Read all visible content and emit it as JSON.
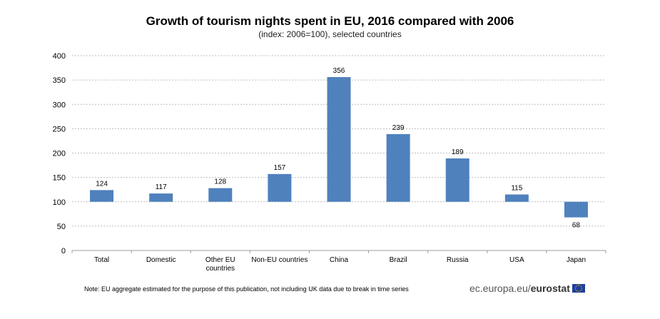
{
  "chart_data": {
    "type": "bar",
    "title": "Growth of tourism nights spent in EU, 2016 compared with 2006",
    "subtitle": "(index: 2006=100), selected countries",
    "categories": [
      "Total",
      "Domestic",
      "Other EU countries",
      "Non-EU countries",
      "China",
      "Brazil",
      "Russia",
      "USA",
      "Japan"
    ],
    "category_lines": [
      [
        "Total"
      ],
      [
        "Domestic"
      ],
      [
        "Other EU",
        "countries"
      ],
      [
        "Non-EU countries"
      ],
      [
        "China"
      ],
      [
        "Brazil"
      ],
      [
        "Russia"
      ],
      [
        "USA"
      ],
      [
        "Japan"
      ]
    ],
    "values": [
      124,
      117,
      128,
      157,
      356,
      239,
      189,
      115,
      68
    ],
    "baseline": 100,
    "ylim": [
      0,
      400
    ],
    "yticks": [
      0,
      50,
      100,
      150,
      200,
      250,
      300,
      350,
      400
    ],
    "xlabel": "",
    "ylabel": "",
    "grid": true,
    "bar_color": "#4f81bd"
  },
  "footer": {
    "note": "Note: EU aggregate estimated for the purpose of this publication, not including UK data due to break in time series",
    "brand_prefix": "ec.europa.eu/",
    "brand_name": "eurostat"
  }
}
